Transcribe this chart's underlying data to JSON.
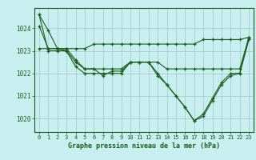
{
  "title": "Graphe pression niveau de la mer (hPa)",
  "background_color": "#c8eef0",
  "line_color": "#1a5c1a",
  "grid_color": "#a0c8c8",
  "xlim": [
    -0.5,
    23.5
  ],
  "ylim": [
    1019.4,
    1024.9
  ],
  "yticks": [
    1020,
    1021,
    1022,
    1023,
    1024
  ],
  "xticks": [
    0,
    1,
    2,
    3,
    4,
    5,
    6,
    7,
    8,
    9,
    10,
    11,
    12,
    13,
    14,
    15,
    16,
    17,
    18,
    19,
    20,
    21,
    22,
    23
  ],
  "series": [
    [
      1024.6,
      1023.9,
      1023.1,
      1023.1,
      1022.6,
      1022.2,
      1022.2,
      1021.9,
      1022.1,
      1022.1,
      1022.5,
      1022.5,
      1022.5,
      1021.9,
      1021.5,
      1021.0,
      1020.5,
      1019.9,
      1020.2,
      1020.9,
      1021.6,
      1022.0,
      1022.0,
      1023.6
    ],
    [
      1024.1,
      1023.1,
      1023.1,
      1023.0,
      1022.5,
      1022.2,
      1022.2,
      1022.2,
      1022.2,
      1022.2,
      1022.5,
      1022.5,
      1022.5,
      1022.5,
      1022.2,
      1022.2,
      1022.2,
      1022.2,
      1022.2,
      1022.2,
      1022.2,
      1022.2,
      1022.2,
      1023.6
    ],
    [
      1023.1,
      1023.1,
      1023.1,
      1023.1,
      1023.1,
      1023.1,
      1023.3,
      1023.3,
      1023.3,
      1023.3,
      1023.3,
      1023.3,
      1023.3,
      1023.3,
      1023.3,
      1023.3,
      1023.3,
      1023.3,
      1023.5,
      1023.5,
      1023.5,
      1023.5,
      1023.5,
      1023.6
    ],
    [
      1024.6,
      1023.0,
      1023.0,
      1023.0,
      1022.3,
      1022.0,
      1022.0,
      1022.0,
      1022.0,
      1022.0,
      1022.5,
      1022.5,
      1022.5,
      1022.0,
      1021.5,
      1021.0,
      1020.5,
      1019.9,
      1020.1,
      1020.8,
      1021.5,
      1021.9,
      1022.0,
      1023.5
    ]
  ]
}
